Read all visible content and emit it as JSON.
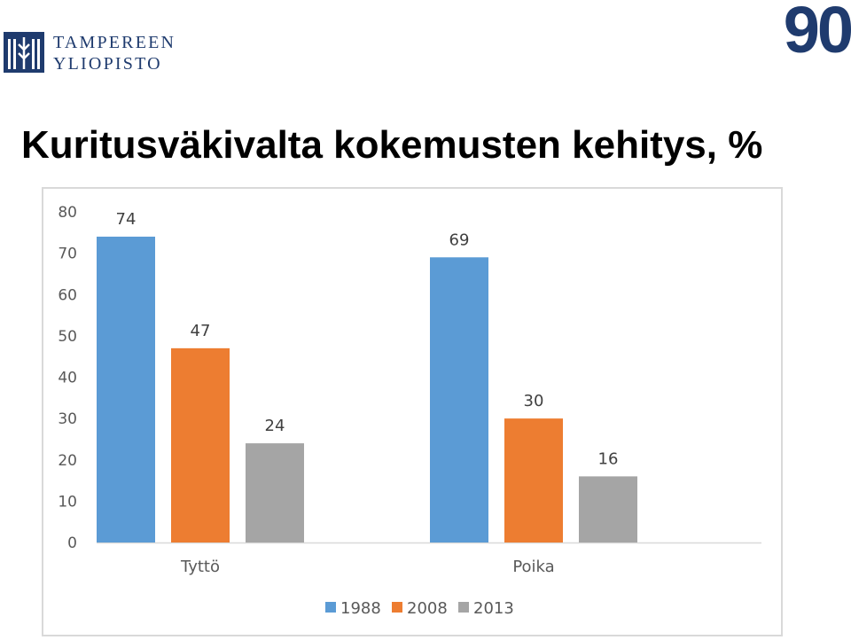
{
  "header": {
    "logo_line1": "TAMPEREEN",
    "logo_line2": "YLIOPISTO",
    "badge": "90",
    "title": "Kuritusväkivalta kokemusten kehitys, %"
  },
  "colors": {
    "brand": "#1f3b6e",
    "series_1988": "#5b9bd5",
    "series_2008": "#ed7d31",
    "series_2013": "#a5a5a5"
  },
  "chart_data": {
    "type": "bar",
    "categories": [
      "Tyttö",
      "Poika"
    ],
    "series": [
      {
        "name": "1988",
        "values": [
          74,
          69
        ],
        "color": "#5b9bd5"
      },
      {
        "name": "2008",
        "values": [
          47,
          30
        ],
        "color": "#ed7d31"
      },
      {
        "name": "2013",
        "values": [
          24,
          16
        ],
        "color": "#a5a5a5"
      }
    ],
    "ylim": [
      0,
      80
    ],
    "yticks": [
      0,
      10,
      20,
      30,
      40,
      50,
      60,
      70,
      80
    ],
    "grid": false,
    "data_labels": true,
    "legend_position": "bottom"
  }
}
